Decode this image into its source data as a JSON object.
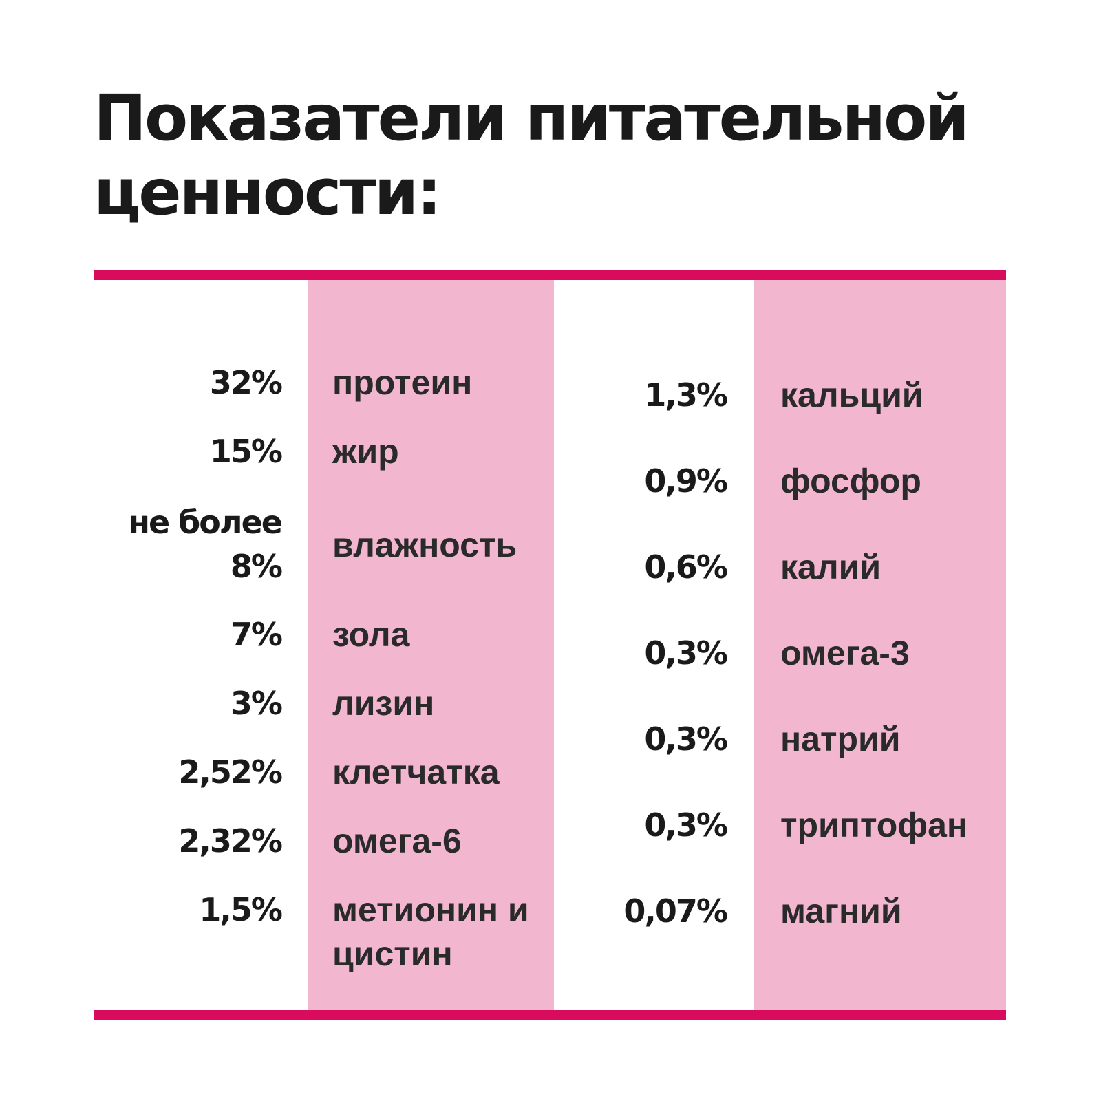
{
  "title": "Показатели питательной ценности:",
  "colors": {
    "accent": "#d90b5c",
    "band": "#f2b6cf",
    "text": "#1a1a1a"
  },
  "left_column": [
    {
      "value": "32%",
      "label": "протеин"
    },
    {
      "value": "15%",
      "label": "жир"
    },
    {
      "value": "не более 8%",
      "label": "влажность"
    },
    {
      "value": "7%",
      "label": "зола"
    },
    {
      "value": "3%",
      "label": "лизин"
    },
    {
      "value": "2,52%",
      "label": "клетчатка"
    },
    {
      "value": "2,32%",
      "label": "омега-6"
    },
    {
      "value": "1,5%",
      "label": "метионин и цистин"
    }
  ],
  "right_column": [
    {
      "value": "1,3%",
      "label": "кальций"
    },
    {
      "value": "0,9%",
      "label": "фосфор"
    },
    {
      "value": "0,6%",
      "label": "калий"
    },
    {
      "value": "0,3%",
      "label": "омега-3"
    },
    {
      "value": "0,3%",
      "label": "натрий"
    },
    {
      "value": "0,3%",
      "label": "триптофан"
    },
    {
      "value": "0,07%",
      "label": "магний"
    }
  ]
}
